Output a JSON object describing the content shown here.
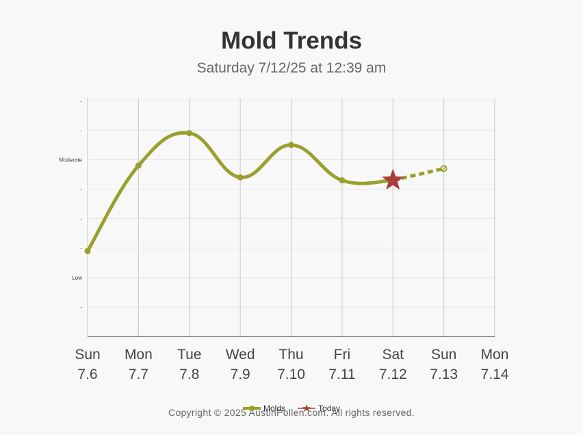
{
  "header": {
    "title": "Mold Trends",
    "subtitle": "Saturday 7/12/25 at 12:39 am"
  },
  "footer": {
    "copyright": "Copyright © 2025 AustinPollen.com.  All rights reserved."
  },
  "legend": {
    "items": [
      {
        "label": "Molds",
        "color": "#9aa02d",
        "icon": "line-dot-icon"
      },
      {
        "label": "Today",
        "color": "#a8403a",
        "icon": "star-icon"
      }
    ]
  },
  "chart_data": {
    "type": "line",
    "title": "Mold Trends",
    "subtitle": "Saturday 7/12/25 at 12:39 am",
    "categories": [
      {
        "day": "Sun",
        "date": "7.6"
      },
      {
        "day": "Mon",
        "date": "7.7"
      },
      {
        "day": "Tue",
        "date": "7.8"
      },
      {
        "day": "Wed",
        "date": "7.9"
      },
      {
        "day": "Thu",
        "date": "7.10"
      },
      {
        "day": "Fri",
        "date": "7.11"
      },
      {
        "day": "Sat",
        "date": "7.12"
      },
      {
        "day": "Sun",
        "date": "7.13"
      },
      {
        "day": "Mon",
        "date": "7.14"
      }
    ],
    "y_ticks": [
      {
        "value": 1,
        "label": "-"
      },
      {
        "value": 2,
        "label": "Low"
      },
      {
        "value": 3,
        "label": "-"
      },
      {
        "value": 4,
        "label": "-"
      },
      {
        "value": 5,
        "label": "-"
      },
      {
        "value": 6,
        "label": "Moderate"
      },
      {
        "value": 7,
        "label": "-"
      },
      {
        "value": 8,
        "label": "-"
      }
    ],
    "ylim": [
      0,
      8.1
    ],
    "series": [
      {
        "name": "Molds",
        "color": "#9aa02d",
        "values": [
          2.9,
          5.8,
          6.9,
          5.4,
          6.5,
          5.3,
          5.3,
          5.7,
          null
        ],
        "today_index": 6,
        "forecast_from_index": 6
      }
    ],
    "today_marker": {
      "label": "Today",
      "color": "#a8403a",
      "index": 6
    },
    "grid": {
      "vertical": true,
      "horizontal": true
    },
    "legend_position": "bottom"
  }
}
